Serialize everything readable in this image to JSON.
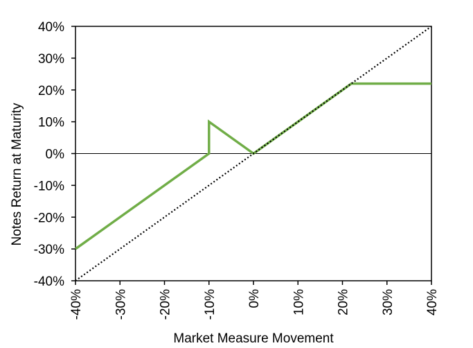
{
  "chart_data": {
    "type": "line",
    "title": "",
    "xlabel": "Market Measure Movement",
    "ylabel": "Notes Return at Maturity",
    "xlim": [
      -40,
      40
    ],
    "ylim": [
      -40,
      40
    ],
    "x_ticks": [
      "-40%",
      "-30%",
      "-20%",
      "-10%",
      "0%",
      "10%",
      "20%",
      "30%",
      "40%"
    ],
    "y_ticks": [
      "40%",
      "30%",
      "20%",
      "10%",
      "0%",
      "-10%",
      "-20%",
      "-30%",
      "-40%"
    ],
    "grid": false,
    "legend": "none",
    "series": [
      {
        "style": "solid",
        "color": "#70ad47",
        "points": [
          [
            -40,
            -30
          ],
          [
            -10,
            0
          ],
          [
            -10,
            10
          ],
          [
            0,
            0
          ],
          [
            22,
            22
          ],
          [
            40,
            22
          ]
        ]
      },
      {
        "style": "dotted",
        "color": "#000000",
        "points": [
          [
            -40,
            -40
          ],
          [
            40,
            40
          ]
        ]
      }
    ]
  }
}
